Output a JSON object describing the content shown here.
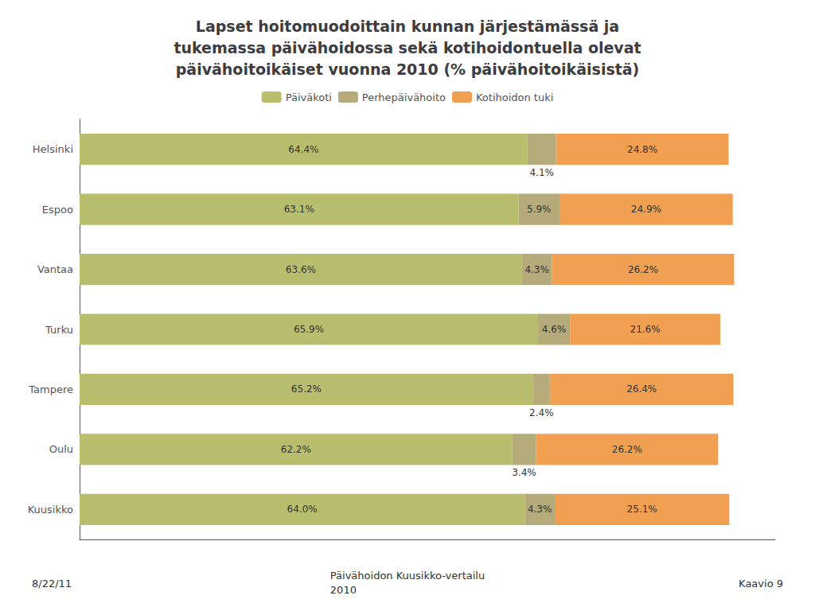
{
  "chart_data": {
    "type": "bar",
    "orientation": "horizontal",
    "stacked": true,
    "title": "Lapset hoitomuodoittain kunnan järjestämässä ja\ntukemassa päivähoidossa sekä kotihoidontuella olevat\npäivähoitoikäiset vuonna 2010 (% päivähoitoikäisistä)",
    "annotations": [
      "8/22/11",
      "Päivähoidon Kuusikko-vertailu\n2010",
      "Kaavio 9"
    ],
    "categories": [
      "Helsinki",
      "Espoo",
      "Vantaa",
      "Turku",
      "Tampere",
      "Oulu",
      "Kuusikko"
    ],
    "series": [
      {
        "name": "Päiväkoti",
        "color": "#b8be6e",
        "values": [
          64.4,
          63.1,
          63.6,
          65.9,
          65.2,
          62.2,
          64.0
        ],
        "value_labels": [
          "64.4%",
          "63.1%",
          "63.6%",
          "65.9%",
          "65.2%",
          "62.2%",
          "64.0%"
        ]
      },
      {
        "name": "Perhepäivähoito",
        "color": "#b5aa7a",
        "values": [
          4.1,
          5.9,
          4.3,
          4.6,
          2.4,
          3.4,
          4.3
        ],
        "value_labels": [
          "4.1%",
          "5.9%",
          "4.3%",
          "4.6%",
          "2.4%",
          "3.4%",
          "4.3%"
        ]
      },
      {
        "name": "Kotihoidon tuki",
        "color": "#f0a050",
        "values": [
          24.8,
          24.9,
          26.2,
          21.6,
          26.4,
          26.2,
          25.1
        ],
        "value_labels": [
          "24.8%",
          "24.9%",
          "26.2%",
          "21.6%",
          "26.4%",
          "26.2%",
          "25.1%"
        ]
      }
    ],
    "xlim": [
      0,
      100
    ],
    "tick_labels": "y",
    "data_labels": true,
    "grid": false,
    "legend": "top"
  }
}
